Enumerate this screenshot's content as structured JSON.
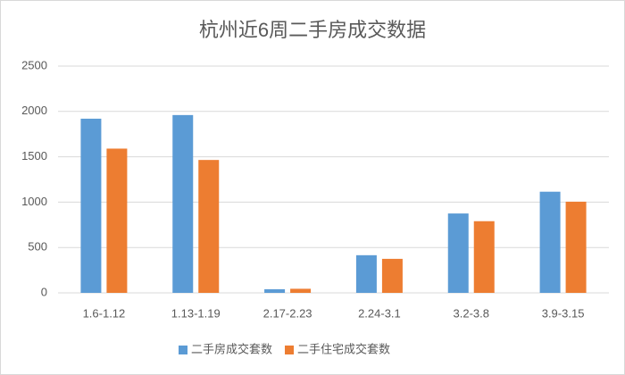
{
  "chart_data": {
    "type": "bar",
    "title": "杭州近6周二手房成交数据",
    "categories": [
      "1.6-1.12",
      "1.13-1.19",
      "2.17-2.23",
      "2.24-3.1",
      "3.2-3.8",
      "3.9-3.15"
    ],
    "series": [
      {
        "name": "二手房成交套数",
        "color": "#5b9bd5",
        "values": [
          1920,
          1960,
          40,
          415,
          875,
          1115
        ]
      },
      {
        "name": "二手住宅成交套数",
        "color": "#ed7d31",
        "values": [
          1590,
          1465,
          45,
          375,
          790,
          1005
        ]
      }
    ],
    "ylim": [
      0,
      2500
    ],
    "yticks": [
      0,
      500,
      1000,
      1500,
      2000,
      2500
    ],
    "grid": true,
    "legend": "bottom"
  }
}
